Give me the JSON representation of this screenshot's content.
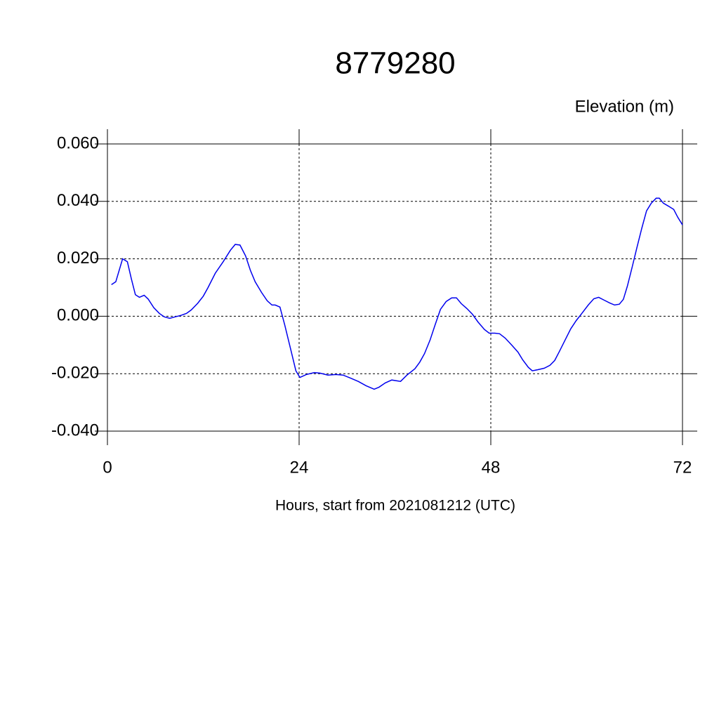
{
  "chart_data": {
    "type": "line",
    "title": "8779280",
    "ylabel": "Elevation (m)",
    "xlabel": "Hours, start from 2021081212 (UTC)",
    "color": "#0000ee",
    "grid": true,
    "xlim": [
      0,
      72
    ],
    "xticks": [
      0,
      24,
      48,
      72
    ],
    "ylim": [
      -0.04,
      0.06
    ],
    "yticks": [
      {
        "value": -0.04,
        "label": "-0.040"
      },
      {
        "value": -0.02,
        "label": "-0.020"
      },
      {
        "value": 0,
        "label": "0.000"
      },
      {
        "value": 0.02,
        "label": "0.020"
      },
      {
        "value": 0.04,
        "label": "0.040"
      },
      {
        "value": 0.06,
        "label": "0.060"
      }
    ],
    "x": [
      0.5,
      1.05,
      1.9,
      2.5,
      3.0,
      3.5,
      4.0,
      4.6,
      5.1,
      5.8,
      6.5,
      7.1,
      7.8,
      8.5,
      9.2,
      9.9,
      10.5,
      11.3,
      12.0,
      12.6,
      13.5,
      14.5,
      15.4,
      16.0,
      16.6,
      17.3,
      17.9,
      18.5,
      19.3,
      20.0,
      20.6,
      21.0,
      21.6,
      22.2,
      22.9,
      23.6,
      24.1,
      24.9,
      25.9,
      26.6,
      27.6,
      28.6,
      29.5,
      30.4,
      31.4,
      32.4,
      33.4,
      34.0,
      34.8,
      35.6,
      36.7,
      37.5,
      38.5,
      39.1,
      39.7,
      40.4,
      41.0,
      41.7,
      42.4,
      43.1,
      43.7,
      44.3,
      45.0,
      45.7,
      46.4,
      47.2,
      47.8,
      48.5,
      49.1,
      49.8,
      50.6,
      51.4,
      52.0,
      52.7,
      53.2,
      53.9,
      54.7,
      55.4,
      56.0,
      56.6,
      57.3,
      58.0,
      58.7,
      59.4,
      60.2,
      60.9,
      61.5,
      62.2,
      62.9,
      63.5,
      64.1,
      64.6,
      65.1,
      65.7,
      66.3,
      66.9,
      67.5,
      68.1,
      68.7,
      69.1,
      69.6,
      70.2,
      70.9,
      71.4,
      72.0
    ],
    "values": [
      0.011,
      0.012,
      0.02,
      0.019,
      0.013,
      0.0075,
      0.0066,
      0.0073,
      0.006,
      0.003,
      0.001,
      -0.0002,
      -0.0007,
      -0.0002,
      0.0003,
      0.001,
      0.0022,
      0.0045,
      0.007,
      0.01,
      0.015,
      0.019,
      0.023,
      0.025,
      0.0248,
      0.021,
      0.016,
      0.012,
      0.0083,
      0.0054,
      0.0039,
      0.0039,
      0.0032,
      -0.003,
      -0.011,
      -0.019,
      -0.0213,
      -0.0203,
      -0.0196,
      -0.0198,
      -0.0205,
      -0.0203,
      -0.0205,
      -0.0215,
      -0.0227,
      -0.0242,
      -0.0254,
      -0.0247,
      -0.0232,
      -0.0222,
      -0.0227,
      -0.0205,
      -0.0183,
      -0.016,
      -0.013,
      -0.0083,
      -0.0032,
      0.0024,
      0.0051,
      0.0064,
      0.0064,
      0.0044,
      0.0027,
      0.0007,
      -0.002,
      -0.0046,
      -0.0059,
      -0.0059,
      -0.0061,
      -0.0076,
      -0.01,
      -0.0125,
      -0.0152,
      -0.0178,
      -0.019,
      -0.0186,
      -0.0181,
      -0.0171,
      -0.0154,
      -0.0122,
      -0.0083,
      -0.0044,
      -0.0015,
      0.001,
      0.0039,
      0.0061,
      0.0066,
      0.0056,
      0.0046,
      0.0039,
      0.0042,
      0.0059,
      0.0105,
      0.0171,
      0.024,
      0.0306,
      0.0367,
      0.0394,
      0.0411,
      0.0411,
      0.0394,
      0.0384,
      0.0372,
      0.0345,
      0.0318
    ]
  }
}
